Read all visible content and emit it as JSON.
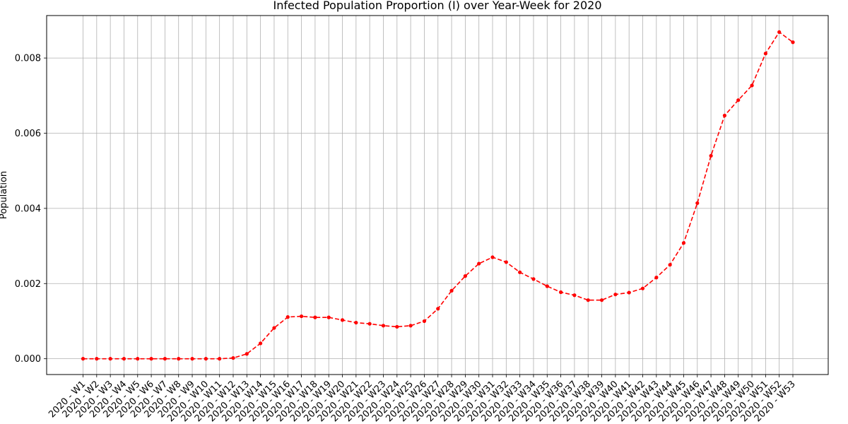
{
  "chart_data": {
    "type": "line",
    "title": "Infected Population Proportion (I) over Year-Week for 2020",
    "xlabel": "",
    "ylabel": "Population",
    "ylim": [
      -0.00042,
      0.00913
    ],
    "yticks": [
      0.0,
      0.002,
      0.004,
      0.006,
      0.008
    ],
    "ytick_labels": [
      "0.000",
      "0.002",
      "0.004",
      "0.006",
      "0.008"
    ],
    "grid": true,
    "categories": [
      "2020 - W1",
      "2020 - W2",
      "2020 - W3",
      "2020 - W4",
      "2020 - W5",
      "2020 - W6",
      "2020 - W7",
      "2020 - W8",
      "2020 - W9",
      "2020 - W10",
      "2020 - W11",
      "2020 - W12",
      "2020 - W13",
      "2020 - W14",
      "2020 - W15",
      "2020 - W16",
      "2020 - W17",
      "2020 - W18",
      "2020 - W19",
      "2020 - W20",
      "2020 - W21",
      "2020 - W22",
      "2020 - W23",
      "2020 - W24",
      "2020 - W25",
      "2020 - W26",
      "2020 - W27",
      "2020 - W28",
      "2020 - W29",
      "2020 - W30",
      "2020 - W31",
      "2020 - W32",
      "2020 - W33",
      "2020 - W34",
      "2020 - W35",
      "2020 - W36",
      "2020 - W37",
      "2020 - W38",
      "2020 - W39",
      "2020 - W40",
      "2020 - W41",
      "2020 - W42",
      "2020 - W43",
      "2020 - W44",
      "2020 - W45",
      "2020 - W46",
      "2020 - W47",
      "2020 - W48",
      "2020 - W49",
      "2020 - W50",
      "2020 - W51",
      "2020 - W52",
      "2020 - W53"
    ],
    "series": [
      {
        "color": "#ff0000",
        "style": "dashed",
        "marker": "circle",
        "values": [
          0.0,
          0.0,
          0.0,
          0.0,
          0.0,
          0.0,
          0.0,
          0.0,
          0.0,
          0.0,
          0.0,
          2e-05,
          0.00013,
          0.00041,
          0.00082,
          0.00111,
          0.00113,
          0.0011,
          0.0011,
          0.00103,
          0.00096,
          0.00093,
          0.00088,
          0.00085,
          0.00088,
          0.001,
          0.00133,
          0.00181,
          0.0022,
          0.00253,
          0.0027,
          0.00257,
          0.0023,
          0.00212,
          0.00193,
          0.00177,
          0.00169,
          0.00156,
          0.00156,
          0.00171,
          0.00176,
          0.00187,
          0.00216,
          0.0025,
          0.00308,
          0.00414,
          0.0054,
          0.00647,
          0.00688,
          0.00727,
          0.00812,
          0.00869,
          0.00842
        ]
      }
    ]
  }
}
